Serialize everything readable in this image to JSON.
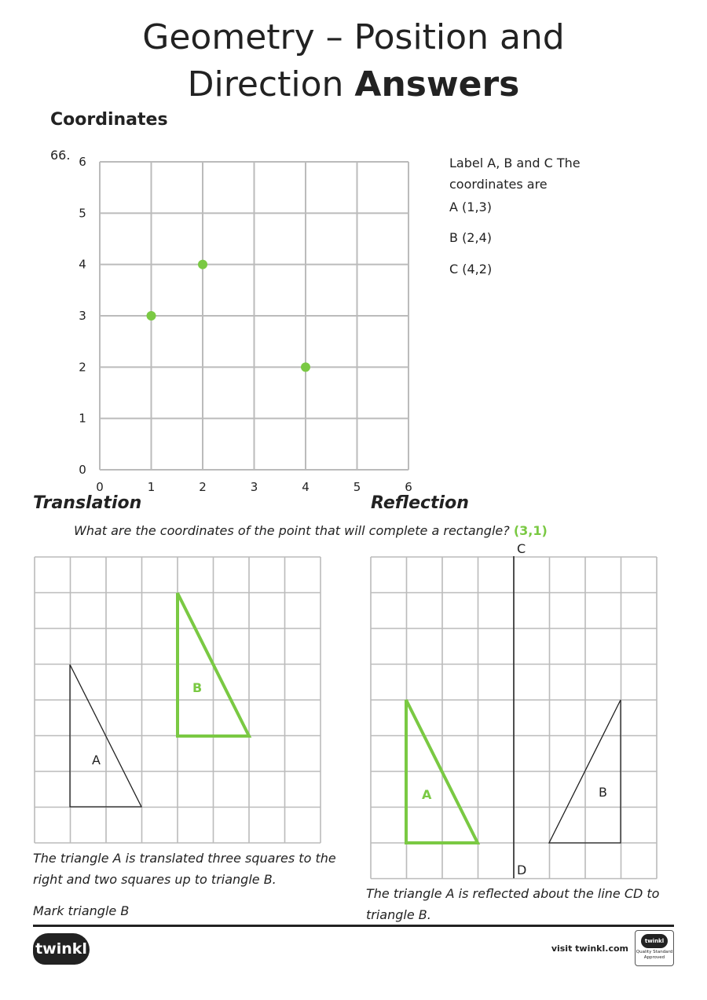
{
  "title": {
    "line1": "Geometry – Position and",
    "line2_regular": "Direction",
    "line2_bold": "Answers"
  },
  "coordinates": {
    "heading": "Coordinates",
    "question_number": "66.",
    "chart_data": {
      "type": "scatter",
      "x": [
        1,
        2,
        4
      ],
      "y": [
        3,
        4,
        2
      ],
      "xlim": [
        0,
        6
      ],
      "ylim": [
        0,
        6
      ],
      "grid": true,
      "x_ticks": [
        "0",
        "1",
        "2",
        "3",
        "4",
        "5",
        "6"
      ],
      "y_ticks": [
        "0",
        "1",
        "2",
        "3",
        "4",
        "5",
        "6"
      ],
      "point_color": "#7ac943"
    },
    "answer_intro": "Label A, B and C The coordinates are",
    "answers": [
      "A (1,3)",
      "B (2,4)",
      "C (4,2)"
    ],
    "rectangle_question": "What are the coordinates of the point that will complete a rectangle?",
    "rectangle_answer": "(3,1)"
  },
  "translation": {
    "heading": "Translation",
    "label_a": "A",
    "label_b": "B",
    "description": "The triangle A is translated three squares to the right and two squares up to triangle B.",
    "instruction": "Mark triangle B"
  },
  "reflection": {
    "heading": "Reflection",
    "line_top_label": "C",
    "line_bottom_label": "D",
    "label_a": "A",
    "label_b": "B",
    "description": "The triangle A is reflected about the line CD to triangle B."
  },
  "footer": {
    "logo_text": "twinkl",
    "visit_text": "visit twinkl.com",
    "badge_logo": "twinkl",
    "badge_text": "Quality Standard Approved"
  },
  "colors": {
    "accent_green": "#7ac943",
    "grid_gray": "#bbbbbb",
    "ink": "#222222"
  }
}
